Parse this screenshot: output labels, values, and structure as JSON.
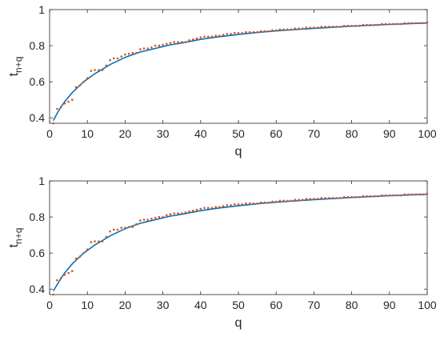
{
  "chart_data": [
    {
      "type": "line",
      "xlabel": "q",
      "ylabel": "t",
      "ylabel_sub": "n+q",
      "xlim": [
        0,
        100
      ],
      "ylim": [
        0.37,
        1.0
      ],
      "xticks": [
        "0",
        "10",
        "20",
        "30",
        "40",
        "50",
        "60",
        "70",
        "80",
        "90",
        "100"
      ],
      "yticks": [
        "0.4",
        "0.6",
        "0.8",
        "1"
      ],
      "grid": false,
      "series": [
        {
          "kind": "line",
          "color": "#0072BD",
          "x": [
            1,
            2,
            3,
            4,
            5,
            6,
            7,
            8,
            9,
            10,
            12,
            14,
            16,
            18,
            20,
            22,
            24,
            26,
            28,
            30,
            32,
            35,
            40,
            45,
            50,
            55,
            60,
            65,
            70,
            75,
            80,
            85,
            90,
            95,
            100
          ],
          "y": [
            0.385,
            0.425,
            0.46,
            0.49,
            0.515,
            0.54,
            0.56,
            0.58,
            0.6,
            0.615,
            0.645,
            0.67,
            0.695,
            0.715,
            0.735,
            0.75,
            0.765,
            0.775,
            0.785,
            0.795,
            0.805,
            0.815,
            0.835,
            0.85,
            0.862,
            0.873,
            0.882,
            0.889,
            0.896,
            0.902,
            0.908,
            0.913,
            0.918,
            0.922,
            0.926
          ]
        },
        {
          "kind": "scatter",
          "color": "#D95319",
          "x": [
            1,
            2,
            3,
            4,
            5,
            6,
            7,
            8,
            9,
            10,
            11,
            12,
            13,
            14,
            15,
            16,
            17,
            18,
            19,
            20,
            21,
            22,
            23,
            24,
            25,
            26,
            27,
            28,
            29,
            30,
            31,
            32,
            33,
            34,
            35,
            36,
            37,
            38,
            39,
            40,
            41,
            42,
            43,
            44,
            45,
            46,
            47,
            48,
            49,
            50,
            51,
            52,
            53,
            54,
            55,
            56,
            57,
            58,
            59,
            60,
            61,
            62,
            63,
            64,
            65,
            66,
            67,
            68,
            69,
            70,
            71,
            72,
            73,
            74,
            75,
            76,
            77,
            78,
            79,
            80,
            81,
            82,
            83,
            84,
            85,
            86,
            87,
            88,
            89,
            90,
            91,
            92,
            93,
            94,
            95,
            96,
            97,
            98,
            99,
            100
          ],
          "y": [
            0.37,
            0.45,
            0.46,
            0.48,
            0.49,
            0.5,
            0.57,
            0.58,
            0.6,
            0.62,
            0.66,
            0.665,
            0.665,
            0.665,
            0.69,
            0.72,
            0.73,
            0.73,
            0.74,
            0.75,
            0.755,
            0.76,
            0.76,
            0.78,
            0.785,
            0.785,
            0.79,
            0.8,
            0.8,
            0.805,
            0.81,
            0.815,
            0.82,
            0.82,
            0.82,
            0.82,
            0.83,
            0.835,
            0.84,
            0.845,
            0.85,
            0.85,
            0.85,
            0.855,
            0.855,
            0.86,
            0.865,
            0.865,
            0.87,
            0.87,
            0.87,
            0.875,
            0.875,
            0.875,
            0.875,
            0.88,
            0.88,
            0.88,
            0.885,
            0.885,
            0.89,
            0.89,
            0.89,
            0.89,
            0.895,
            0.895,
            0.895,
            0.9,
            0.9,
            0.9,
            0.9,
            0.905,
            0.905,
            0.905,
            0.905,
            0.905,
            0.905,
            0.91,
            0.91,
            0.91,
            0.91,
            0.91,
            0.915,
            0.915,
            0.915,
            0.915,
            0.915,
            0.92,
            0.92,
            0.92,
            0.92,
            0.92,
            0.92,
            0.925,
            0.925,
            0.925,
            0.925,
            0.925,
            0.925,
            0.93
          ]
        }
      ]
    },
    {
      "type": "line",
      "xlabel": "q",
      "ylabel": "t",
      "ylabel_sub": "n+q",
      "xlim": [
        0,
        100
      ],
      "ylim": [
        0.37,
        1.0
      ],
      "xticks": [
        "0",
        "10",
        "20",
        "30",
        "40",
        "50",
        "60",
        "70",
        "80",
        "90",
        "100"
      ],
      "yticks": [
        "0.4",
        "0.6",
        "0.8",
        "1"
      ],
      "grid": false,
      "series": [
        {
          "kind": "line",
          "color": "#0072BD",
          "x": [
            1,
            2,
            3,
            4,
            5,
            6,
            7,
            8,
            9,
            10,
            12,
            14,
            16,
            18,
            20,
            22,
            24,
            26,
            28,
            30,
            32,
            35,
            40,
            45,
            50,
            55,
            60,
            65,
            70,
            75,
            80,
            85,
            90,
            95,
            100
          ],
          "y": [
            0.39,
            0.425,
            0.46,
            0.49,
            0.515,
            0.54,
            0.56,
            0.58,
            0.6,
            0.615,
            0.645,
            0.67,
            0.695,
            0.715,
            0.735,
            0.75,
            0.765,
            0.775,
            0.785,
            0.795,
            0.805,
            0.815,
            0.835,
            0.85,
            0.862,
            0.873,
            0.882,
            0.889,
            0.896,
            0.902,
            0.908,
            0.913,
            0.918,
            0.922,
            0.926
          ]
        },
        {
          "kind": "scatter",
          "color": "#D95319",
          "x": [
            1,
            2,
            3,
            4,
            5,
            6,
            7,
            8,
            9,
            10,
            11,
            12,
            13,
            14,
            15,
            16,
            17,
            18,
            19,
            20,
            21,
            22,
            23,
            24,
            25,
            26,
            27,
            28,
            29,
            30,
            31,
            32,
            33,
            34,
            35,
            36,
            37,
            38,
            39,
            40,
            41,
            42,
            43,
            44,
            45,
            46,
            47,
            48,
            49,
            50,
            51,
            52,
            53,
            54,
            55,
            56,
            57,
            58,
            59,
            60,
            61,
            62,
            63,
            64,
            65,
            66,
            67,
            68,
            69,
            70,
            71,
            72,
            73,
            74,
            75,
            76,
            77,
            78,
            79,
            80,
            81,
            82,
            83,
            84,
            85,
            86,
            87,
            88,
            89,
            90,
            91,
            92,
            93,
            94,
            95,
            96,
            97,
            98,
            99,
            100
          ],
          "y": [
            0.37,
            0.45,
            0.46,
            0.48,
            0.49,
            0.5,
            0.57,
            0.58,
            0.6,
            0.62,
            0.66,
            0.665,
            0.665,
            0.665,
            0.69,
            0.72,
            0.73,
            0.73,
            0.74,
            0.74,
            0.745,
            0.745,
            0.76,
            0.78,
            0.785,
            0.785,
            0.79,
            0.795,
            0.8,
            0.8,
            0.81,
            0.815,
            0.82,
            0.82,
            0.82,
            0.825,
            0.83,
            0.835,
            0.84,
            0.845,
            0.85,
            0.85,
            0.85,
            0.855,
            0.855,
            0.86,
            0.865,
            0.865,
            0.87,
            0.87,
            0.87,
            0.875,
            0.875,
            0.875,
            0.875,
            0.88,
            0.88,
            0.88,
            0.885,
            0.885,
            0.89,
            0.89,
            0.89,
            0.89,
            0.895,
            0.895,
            0.895,
            0.9,
            0.9,
            0.9,
            0.9,
            0.905,
            0.905,
            0.905,
            0.905,
            0.905,
            0.905,
            0.91,
            0.91,
            0.91,
            0.91,
            0.91,
            0.915,
            0.915,
            0.915,
            0.915,
            0.915,
            0.92,
            0.92,
            0.92,
            0.92,
            0.92,
            0.92,
            0.925,
            0.925,
            0.925,
            0.925,
            0.925,
            0.925,
            0.93
          ]
        }
      ]
    }
  ]
}
